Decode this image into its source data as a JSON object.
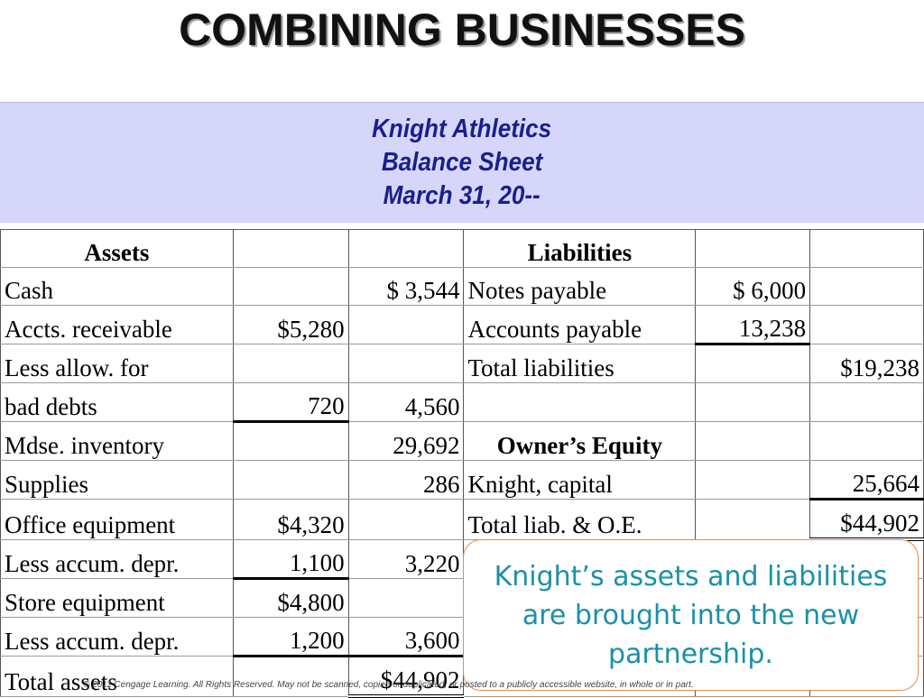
{
  "title": "COMBINING BUSINESSES",
  "header": {
    "company": "Knight Athletics",
    "statement": "Balance Sheet",
    "date": "March 31, 20--"
  },
  "table": {
    "rows": [
      [
        "Assets",
        "",
        "",
        "Liabilities",
        "",
        ""
      ],
      [
        "Cash",
        "",
        "$  3,544",
        "Notes payable",
        "$  6,000",
        ""
      ],
      [
        "Accts. receivable",
        "$5,280",
        "",
        "Accounts payable",
        "13,238",
        ""
      ],
      [
        "Less allow. for",
        "",
        "",
        "Total liabilities",
        "",
        "$19,238"
      ],
      [
        "bad debts",
        "720",
        "4,560",
        "",
        "",
        ""
      ],
      [
        "Mdse. inventory",
        "",
        "29,692",
        "Owner’s Equity",
        "",
        ""
      ],
      [
        "Supplies",
        "",
        "286",
        "Knight, capital",
        "",
        "25,664"
      ],
      [
        "Office equipment",
        "$4,320",
        "",
        "Total liab. & O.E.",
        "",
        "$44,902"
      ],
      [
        "Less accum. depr.",
        "1,100",
        "3,220",
        "",
        "",
        ""
      ],
      [
        "Store equipment",
        "$4,800",
        "",
        "",
        "",
        ""
      ],
      [
        "Less accum. depr.",
        "1,200",
        "3,600",
        "",
        "",
        ""
      ],
      [
        "Total assets",
        "",
        "$44,902",
        "",
        "",
        ""
      ]
    ]
  },
  "callout": {
    "text": "Knight’s assets and liabilities are brought into the new partnership."
  },
  "footer": "© 2011 Cengage Learning. All Rights Reserved. May not be scanned, copied or duplicated, or posted to a publicly accessible website, in whole or in part."
}
